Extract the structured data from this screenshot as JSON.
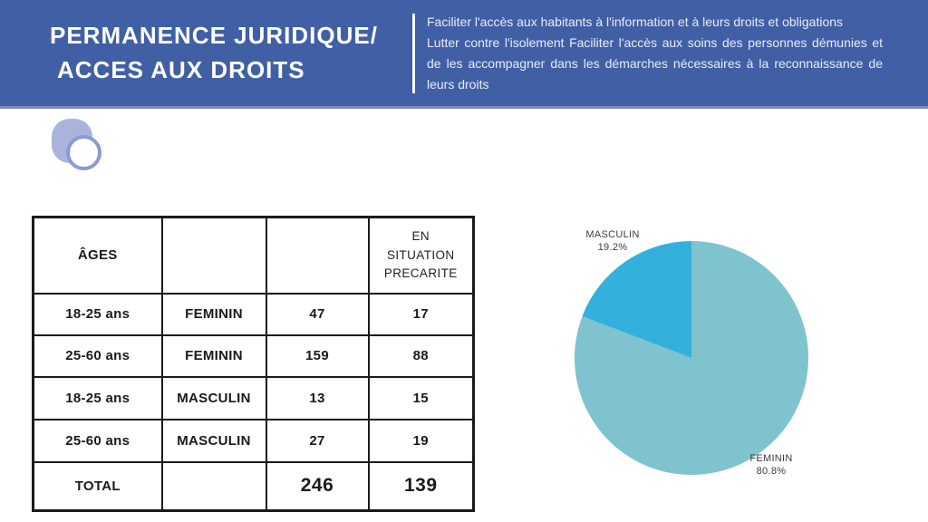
{
  "header": {
    "title_line1": "PERMANENCE JURIDIQUE/",
    "title_line2": "ACCES AUX DROITS",
    "description_1": "Faciliter l'accès aux habitants à l'information et à leurs droits et obligations",
    "description_2": "Lutter contre l'isolement Faciliter l'accès aux soins des personnes démunies et de les accompagner dans les démarches nécessaires à la reconnaissance de leurs droits"
  },
  "table": {
    "headers": [
      "ÂGES",
      "",
      "",
      "EN SITUATION PRECARITE"
    ],
    "rows": [
      [
        "18-25 ans",
        "FEMININ",
        "47",
        "17"
      ],
      [
        "25-60 ans",
        "FEMININ",
        "159",
        "88"
      ],
      [
        "18-25 ans",
        "MASCULIN",
        "13",
        "15"
      ],
      [
        "25-60 ans",
        "MASCULIN",
        "27",
        "19"
      ]
    ],
    "total_row": [
      "TOTAL",
      "",
      "246",
      "139"
    ]
  },
  "chart_data": {
    "type": "pie",
    "title": "",
    "labels": [
      "FEMININ",
      "MASCULIN"
    ],
    "values": [
      80.8,
      19.2
    ],
    "unit": "percent",
    "colors": [
      "#7fc3cf",
      "#33b1dc"
    ],
    "start_angle": "12-oclock",
    "direction": "clockwise",
    "labels_position": "outside",
    "callouts": [
      {
        "name": "MASCULIN",
        "value": "19.2%"
      },
      {
        "name": "FEMININ",
        "value": "80.8%"
      }
    ]
  },
  "colors": {
    "banner_blue": "#405fa5",
    "banner_bottom_strip": "#7d8bc3",
    "capsule_lavender": "#aab3dc",
    "ring_lavender": "#8b99d4",
    "table_border_black": "#1a1a1a",
    "pie_feminin": "#7fc3cf",
    "pie_masculin": "#33b1dc"
  }
}
